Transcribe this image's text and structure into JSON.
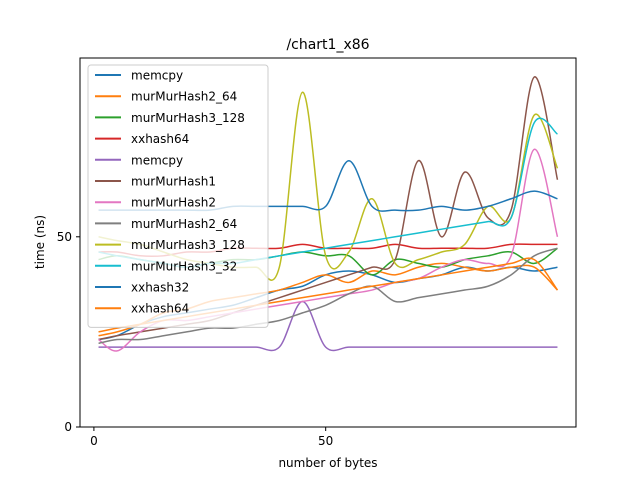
{
  "chart_data": {
    "type": "line",
    "title": "/chart1_x86",
    "xlabel": "number of bytes",
    "ylabel": "time (ns)",
    "xlim": [
      -3,
      104
    ],
    "ylim": [
      0,
      97
    ],
    "xticks": [
      0,
      50
    ],
    "yticks": [
      0,
      50
    ],
    "grid": false,
    "legend_position": "upper-left",
    "x": [
      1,
      5,
      10,
      15,
      20,
      25,
      30,
      35,
      40,
      45,
      50,
      55,
      60,
      65,
      70,
      75,
      80,
      85,
      90,
      95,
      100
    ],
    "series": [
      {
        "name": "memcpy",
        "color": "#1f77b4",
        "values": [
          23,
          24,
          27,
          29,
          30,
          31,
          32,
          34,
          36,
          37,
          40,
          41,
          40,
          38,
          39,
          40,
          42,
          41,
          42,
          41,
          42
        ]
      },
      {
        "name": "murMurHash2_64",
        "color": "#ff7f0e",
        "values": [
          24,
          25,
          27,
          30,
          31,
          33,
          34,
          35,
          36,
          38,
          40,
          38,
          41,
          40,
          42,
          43,
          42,
          41,
          42,
          42,
          36
        ]
      },
      {
        "name": "murMurHash3_128",
        "color": "#2ca02c",
        "values": [
          44,
          45,
          44,
          43,
          42,
          43,
          44,
          44,
          45,
          46,
          45,
          45,
          40,
          44,
          43,
          42,
          44,
          45,
          46,
          43,
          47
        ]
      },
      {
        "name": "xxhash64",
        "color": "#d62728",
        "values": [
          46,
          46,
          45,
          45,
          46,
          46,
          47,
          47,
          47,
          48,
          47,
          47,
          47,
          48,
          47,
          47,
          47,
          47,
          48,
          48,
          48
        ]
      },
      {
        "name": "memcpy",
        "color": "#9467bd",
        "values": [
          21,
          21,
          21,
          21,
          21,
          21,
          21,
          21,
          21,
          33,
          21,
          21,
          21,
          21,
          21,
          21,
          21,
          21,
          21,
          21,
          21
        ]
      },
      {
        "name": "murMurHash1",
        "color": "#8c564b",
        "values": [
          23,
          24,
          25,
          26,
          27,
          28,
          30,
          32,
          34,
          36,
          38,
          40,
          42,
          44,
          70,
          50,
          67,
          55,
          57,
          92,
          65
        ]
      },
      {
        "name": "murMurHash2",
        "color": "#e377c2",
        "values": [
          23,
          20,
          25,
          28,
          28,
          29,
          30,
          31,
          32,
          33,
          34,
          35,
          36,
          38,
          39,
          42,
          44,
          43,
          45,
          73,
          50
        ]
      },
      {
        "name": "murMurHash2_64",
        "color": "#7f7f7f",
        "values": [
          22,
          23,
          23,
          24,
          25,
          26,
          26,
          27,
          28,
          30,
          32,
          35,
          37,
          33,
          34,
          35,
          36,
          37,
          40,
          45,
          47
        ]
      },
      {
        "name": "murMurHash3_128",
        "color": "#bcbd22",
        "values": [
          50,
          49,
          48,
          46,
          44,
          43,
          42,
          42,
          42,
          88,
          45,
          46,
          60,
          43,
          44,
          46,
          48,
          58,
          55,
          82,
          68
        ]
      },
      {
        "name": "murMurHash3_32",
        "color": "#17becf",
        "values": [
          46,
          45,
          44,
          43,
          42,
          43,
          43,
          44,
          45,
          46,
          47,
          48,
          49,
          50,
          51,
          52,
          53,
          54,
          55,
          80,
          77
        ]
      },
      {
        "name": "xxhash32",
        "color": "#1f77b4",
        "values": [
          57,
          57,
          57,
          57,
          57,
          57,
          58,
          58,
          58,
          58,
          58,
          70,
          58,
          57,
          57,
          58,
          57,
          58,
          60,
          62,
          60
        ]
      },
      {
        "name": "xxhash64",
        "color": "#ff7f0e",
        "values": [
          25,
          26,
          27,
          28,
          29,
          30,
          31,
          32,
          33,
          34,
          35,
          36,
          37,
          38,
          39,
          40,
          41,
          42,
          43,
          44,
          36
        ]
      }
    ]
  }
}
